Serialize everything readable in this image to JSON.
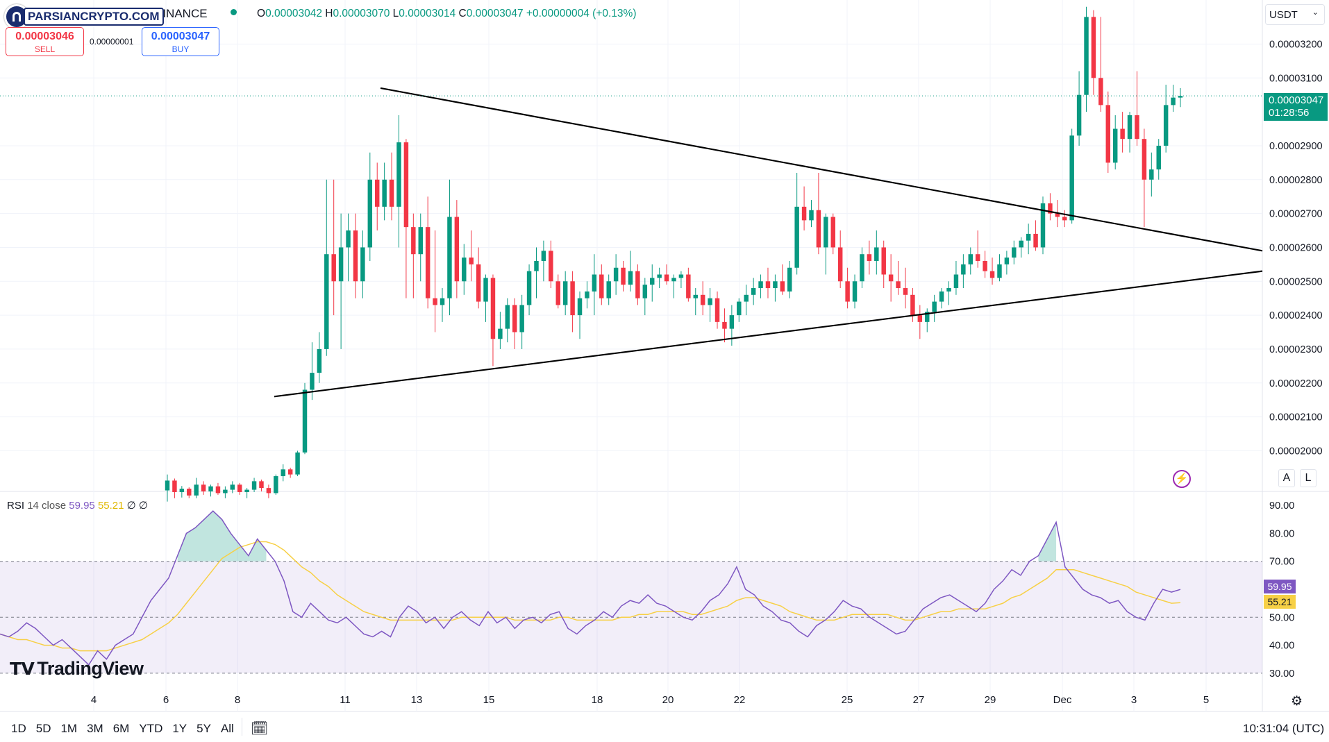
{
  "watermark": {
    "site": "PARSIANCRYPTO.COM",
    "exchange": "BINANCE",
    "brand": "TradingView"
  },
  "header": {
    "o_label": "O",
    "o_val": "0.00003042",
    "h_label": "H",
    "h_val": "0.00003070",
    "l_label": "L",
    "l_val": "0.00003014",
    "c_label": "C",
    "c_val": "0.00003047",
    "change": "+0.00000004 (+0.13%)"
  },
  "trade": {
    "sell_price": "0.00003046",
    "sell_label": "SELL",
    "spread": "0.00000001",
    "buy_price": "0.00003047",
    "buy_label": "BUY"
  },
  "currency": "USDT",
  "price_tag": {
    "price": "0.00003047",
    "countdown": "01:28:56"
  },
  "scale_buttons": {
    "auto": "A",
    "log": "L"
  },
  "rsi_header": {
    "name": "RSI",
    "params": "14 close",
    "rsi": "59.95",
    "ma": "55.21",
    "ext1": "∅",
    "ext2": "∅"
  },
  "rsi_tags": {
    "rsi": "59.95",
    "ma": "55.21"
  },
  "timeframes": [
    "1D",
    "5D",
    "1M",
    "3M",
    "6M",
    "YTD",
    "1Y",
    "5Y",
    "All"
  ],
  "clock": "10:31:04 (UTC)",
  "colors": {
    "up": "#089981",
    "down": "#f23645",
    "rsi": "#7e57c2",
    "rsi_ma": "#f7d046",
    "trend": "#000000"
  },
  "chart_data": {
    "type": "candlestick",
    "price_axis": {
      "ticks": [
        "0.00003200",
        "0.00003100",
        "0.00002900",
        "0.00002800",
        "0.00002700",
        "0.00002600",
        "0.00002500",
        "0.00002400",
        "0.00002300",
        "0.00002200",
        "0.00002100",
        "0.00002000"
      ],
      "range": [
        1.88e-05,
        3.33e-05
      ]
    },
    "time_axis": {
      "ticks": [
        "4",
        "6",
        "8",
        "11",
        "13",
        "15",
        "18",
        "20",
        "22",
        "25",
        "27",
        "29",
        "Dec",
        "3",
        "5"
      ]
    },
    "candles": [
      [
        1.883e-05,
        1.93e-05,
        1.85e-05,
        1.912e-05
      ],
      [
        1.912e-05,
        1.918e-05,
        1.86e-05,
        1.878e-05
      ],
      [
        1.878e-05,
        1.896e-05,
        1.862e-05,
        1.888e-05
      ],
      [
        1.888e-05,
        1.892e-05,
        1.86e-05,
        1.868e-05
      ],
      [
        1.868e-05,
        1.92e-05,
        1.86e-05,
        1.9e-05
      ],
      [
        1.9e-05,
        1.91e-05,
        1.87e-05,
        1.88e-05
      ],
      [
        1.88e-05,
        1.9e-05,
        1.865e-05,
        1.895e-05
      ],
      [
        1.895e-05,
        1.905e-05,
        1.87e-05,
        1.875e-05
      ],
      [
        1.875e-05,
        1.895e-05,
        1.86e-05,
        1.885e-05
      ],
      [
        1.885e-05,
        1.91e-05,
        1.875e-05,
        1.9e-05
      ],
      [
        1.9e-05,
        1.905e-05,
        1.87e-05,
        1.878e-05
      ],
      [
        1.878e-05,
        1.89e-05,
        1.86e-05,
        1.885e-05
      ],
      [
        1.885e-05,
        1.92e-05,
        1.878e-05,
        1.91e-05
      ],
      [
        1.91e-05,
        1.915e-05,
        1.88e-05,
        1.89e-05
      ],
      [
        1.89e-05,
        1.9e-05,
        1.86e-05,
        1.875e-05
      ],
      [
        1.875e-05,
        1.93e-05,
        1.87e-05,
        1.925e-05
      ],
      [
        1.925e-05,
        1.96e-05,
        1.91e-05,
        1.945e-05
      ],
      [
        1.945e-05,
        1.95e-05,
        1.92e-05,
        1.93e-05
      ],
      [
        1.93e-05,
        2e-05,
        1.925e-05,
        1.995e-05
      ],
      [
        1.995e-05,
        2.2e-05,
        1.99e-05,
        2.18e-05
      ],
      [
        2.18e-05,
        2.32e-05,
        2.15e-05,
        2.23e-05
      ],
      [
        2.23e-05,
        2.35e-05,
        2.2e-05,
        2.3e-05
      ],
      [
        2.3e-05,
        2.8e-05,
        2.28e-05,
        2.58e-05
      ],
      [
        2.58e-05,
        2.8e-05,
        2.4e-05,
        2.5e-05
      ],
      [
        2.5e-05,
        2.7e-05,
        2.3e-05,
        2.6e-05
      ],
      [
        2.6e-05,
        2.7e-05,
        2.5e-05,
        2.65e-05
      ],
      [
        2.65e-05,
        2.7e-05,
        2.45e-05,
        2.5e-05
      ],
      [
        2.5e-05,
        2.65e-05,
        2.45e-05,
        2.6e-05
      ],
      [
        2.6e-05,
        2.88e-05,
        2.56e-05,
        2.8e-05
      ],
      [
        2.8e-05,
        2.85e-05,
        2.65e-05,
        2.72e-05
      ],
      [
        2.72e-05,
        2.85e-05,
        2.68e-05,
        2.8e-05
      ],
      [
        2.8e-05,
        2.88e-05,
        2.68e-05,
        2.72e-05
      ],
      [
        2.72e-05,
        2.99e-05,
        2.6e-05,
        2.91e-05
      ],
      [
        2.91e-05,
        2.92e-05,
        2.45e-05,
        2.66e-05
      ],
      [
        2.66e-05,
        2.7e-05,
        2.45e-05,
        2.58e-05
      ],
      [
        2.58e-05,
        2.7e-05,
        2.5e-05,
        2.66e-05
      ],
      [
        2.66e-05,
        2.75e-05,
        2.42e-05,
        2.45e-05
      ],
      [
        2.45e-05,
        2.65e-05,
        2.35e-05,
        2.43e-05
      ],
      [
        2.43e-05,
        2.48e-05,
        2.38e-05,
        2.45e-05
      ],
      [
        2.45e-05,
        2.8e-05,
        2.4e-05,
        2.69e-05
      ],
      [
        2.69e-05,
        2.74e-05,
        2.45e-05,
        2.5e-05
      ],
      [
        2.5e-05,
        2.61e-05,
        2.46e-05,
        2.57e-05
      ],
      [
        2.57e-05,
        2.65e-05,
        2.5e-05,
        2.55e-05
      ],
      [
        2.55e-05,
        2.6e-05,
        2.42e-05,
        2.44e-05
      ],
      [
        2.44e-05,
        2.52e-05,
        2.38e-05,
        2.51e-05
      ],
      [
        2.51e-05,
        2.52e-05,
        2.25e-05,
        2.33e-05
      ],
      [
        2.33e-05,
        2.41e-05,
        2.3e-05,
        2.36e-05
      ],
      [
        2.36e-05,
        2.45e-05,
        2.32e-05,
        2.43e-05
      ],
      [
        2.43e-05,
        2.45e-05,
        2.3e-05,
        2.35e-05
      ],
      [
        2.35e-05,
        2.46e-05,
        2.3e-05,
        2.43e-05
      ],
      [
        2.43e-05,
        2.55e-05,
        2.4e-05,
        2.53e-05
      ],
      [
        2.53e-05,
        2.6e-05,
        2.45e-05,
        2.56e-05
      ],
      [
        2.56e-05,
        2.62e-05,
        2.5e-05,
        2.59e-05
      ],
      [
        2.59e-05,
        2.62e-05,
        2.48e-05,
        2.5e-05
      ],
      [
        2.5e-05,
        2.52e-05,
        2.42e-05,
        2.43e-05
      ],
      [
        2.43e-05,
        2.53e-05,
        2.4e-05,
        2.5e-05
      ],
      [
        2.5e-05,
        2.53e-05,
        2.35e-05,
        2.4e-05
      ],
      [
        2.4e-05,
        2.47e-05,
        2.33e-05,
        2.45e-05
      ],
      [
        2.45e-05,
        2.5e-05,
        2.42e-05,
        2.47e-05
      ],
      [
        2.47e-05,
        2.58e-05,
        2.4e-05,
        2.52e-05
      ],
      [
        2.52e-05,
        2.55e-05,
        2.43e-05,
        2.45e-05
      ],
      [
        2.45e-05,
        2.52e-05,
        2.43e-05,
        2.5e-05
      ],
      [
        2.5e-05,
        2.58e-05,
        2.46e-05,
        2.54e-05
      ],
      [
        2.54e-05,
        2.56e-05,
        2.47e-05,
        2.49e-05
      ],
      [
        2.49e-05,
        2.59e-05,
        2.47e-05,
        2.53e-05
      ],
      [
        2.53e-05,
        2.55e-05,
        2.43e-05,
        2.45e-05
      ],
      [
        2.45e-05,
        2.51e-05,
        2.4e-05,
        2.49e-05
      ],
      [
        2.49e-05,
        2.55e-05,
        2.44e-05,
        2.51e-05
      ],
      [
        2.51e-05,
        2.54e-05,
        2.48e-05,
        2.52e-05
      ],
      [
        2.52e-05,
        2.55e-05,
        2.49e-05,
        2.5e-05
      ],
      [
        2.5e-05,
        2.52e-05,
        2.45e-05,
        2.51e-05
      ],
      [
        2.51e-05,
        2.53e-05,
        2.48e-05,
        2.52e-05
      ],
      [
        2.52e-05,
        2.54e-05,
        2.44e-05,
        2.45e-05
      ],
      [
        2.45e-05,
        2.48e-05,
        2.4e-05,
        2.46e-05
      ],
      [
        2.46e-05,
        2.5e-05,
        2.4e-05,
        2.43e-05
      ],
      [
        2.43e-05,
        2.48e-05,
        2.38e-05,
        2.45e-05
      ],
      [
        2.45e-05,
        2.47e-05,
        2.36e-05,
        2.38e-05
      ],
      [
        2.38e-05,
        2.42e-05,
        2.32e-05,
        2.36e-05
      ],
      [
        2.36e-05,
        2.43e-05,
        2.31e-05,
        2.4e-05
      ],
      [
        2.4e-05,
        2.45e-05,
        2.38e-05,
        2.44e-05
      ],
      [
        2.44e-05,
        2.49e-05,
        2.4e-05,
        2.46e-05
      ],
      [
        2.46e-05,
        2.51e-05,
        2.43e-05,
        2.48e-05
      ],
      [
        2.48e-05,
        2.52e-05,
        2.45e-05,
        2.5e-05
      ],
      [
        2.5e-05,
        2.54e-05,
        2.45e-05,
        2.48e-05
      ],
      [
        2.48e-05,
        2.52e-05,
        2.44e-05,
        2.5e-05
      ],
      [
        2.5e-05,
        2.55e-05,
        2.46e-05,
        2.47e-05
      ],
      [
        2.47e-05,
        2.56e-05,
        2.45e-05,
        2.54e-05
      ],
      [
        2.54e-05,
        2.82e-05,
        2.52e-05,
        2.72e-05
      ],
      [
        2.72e-05,
        2.78e-05,
        2.65e-05,
        2.68e-05
      ],
      [
        2.68e-05,
        2.74e-05,
        2.66e-05,
        2.71e-05
      ],
      [
        2.71e-05,
        2.82e-05,
        2.58e-05,
        2.6e-05
      ],
      [
        2.6e-05,
        2.7e-05,
        2.52e-05,
        2.69e-05
      ],
      [
        2.69e-05,
        2.7e-05,
        2.58e-05,
        2.6e-05
      ],
      [
        2.6e-05,
        2.65e-05,
        2.48e-05,
        2.5e-05
      ],
      [
        2.5e-05,
        2.54e-05,
        2.42e-05,
        2.44e-05
      ],
      [
        2.44e-05,
        2.52e-05,
        2.42e-05,
        2.5e-05
      ],
      [
        2.5e-05,
        2.6e-05,
        2.48e-05,
        2.58e-05
      ],
      [
        2.58e-05,
        2.62e-05,
        2.52e-05,
        2.56e-05
      ],
      [
        2.56e-05,
        2.65e-05,
        2.52e-05,
        2.6e-05
      ],
      [
        2.6e-05,
        2.62e-05,
        2.48e-05,
        2.52e-05
      ],
      [
        2.52e-05,
        2.58e-05,
        2.44e-05,
        2.5e-05
      ],
      [
        2.5e-05,
        2.56e-05,
        2.46e-05,
        2.48e-05
      ],
      [
        2.48e-05,
        2.54e-05,
        2.42e-05,
        2.46e-05
      ],
      [
        2.46e-05,
        2.48e-05,
        2.38e-05,
        2.4e-05
      ],
      [
        2.4e-05,
        2.43e-05,
        2.33e-05,
        2.38e-05
      ],
      [
        2.38e-05,
        2.42e-05,
        2.35e-05,
        2.41e-05
      ],
      [
        2.41e-05,
        2.46e-05,
        2.38e-05,
        2.44e-05
      ],
      [
        2.44e-05,
        2.48e-05,
        2.42e-05,
        2.47e-05
      ],
      [
        2.47e-05,
        2.5e-05,
        2.43e-05,
        2.48e-05
      ],
      [
        2.48e-05,
        2.56e-05,
        2.46e-05,
        2.52e-05
      ],
      [
        2.52e-05,
        2.58e-05,
        2.48e-05,
        2.55e-05
      ],
      [
        2.55e-05,
        2.6e-05,
        2.52e-05,
        2.58e-05
      ],
      [
        2.58e-05,
        2.65e-05,
        2.54e-05,
        2.56e-05
      ],
      [
        2.56e-05,
        2.59e-05,
        2.51e-05,
        2.53e-05
      ],
      [
        2.53e-05,
        2.57e-05,
        2.49e-05,
        2.51e-05
      ],
      [
        2.51e-05,
        2.58e-05,
        2.5e-05,
        2.55e-05
      ],
      [
        2.55e-05,
        2.59e-05,
        2.52e-05,
        2.57e-05
      ],
      [
        2.57e-05,
        2.62e-05,
        2.55e-05,
        2.6e-05
      ],
      [
        2.6e-05,
        2.63e-05,
        2.57e-05,
        2.62e-05
      ],
      [
        2.62e-05,
        2.67e-05,
        2.58e-05,
        2.64e-05
      ],
      [
        2.64e-05,
        2.68e-05,
        2.59e-05,
        2.6e-05
      ],
      [
        2.6e-05,
        2.75e-05,
        2.58e-05,
        2.73e-05
      ],
      [
        2.73e-05,
        2.76e-05,
        2.68e-05,
        2.7e-05
      ],
      [
        2.7e-05,
        2.74e-05,
        2.66e-05,
        2.69e-05
      ],
      [
        2.69e-05,
        2.71e-05,
        2.66e-05,
        2.68e-05
      ],
      [
        2.68e-05,
        2.95e-05,
        2.67e-05,
        2.93e-05
      ],
      [
        2.93e-05,
        3.12e-05,
        2.9e-05,
        3.05e-05
      ],
      [
        3.05e-05,
        3.31e-05,
        3e-05,
        3.28e-05
      ],
      [
        3.28e-05,
        3.3e-05,
        3.05e-05,
        3.1e-05
      ],
      [
        3.1e-05,
        3.28e-05,
        3e-05,
        3.02e-05
      ],
      [
        3.02e-05,
        3.06e-05,
        2.82e-05,
        2.85e-05
      ],
      [
        2.85e-05,
        2.99e-05,
        2.83e-05,
        2.95e-05
      ],
      [
        2.95e-05,
        3e-05,
        2.88e-05,
        2.92e-05
      ],
      [
        2.92e-05,
        3e-05,
        2.88e-05,
        2.99e-05
      ],
      [
        2.99e-05,
        3.12e-05,
        2.9e-05,
        2.92e-05
      ],
      [
        2.92e-05,
        2.95e-05,
        2.66e-05,
        2.8e-05
      ],
      [
        2.8e-05,
        2.88e-05,
        2.75e-05,
        2.83e-05
      ],
      [
        2.83e-05,
        2.92e-05,
        2.8e-05,
        2.9e-05
      ],
      [
        2.9e-05,
        3.08e-05,
        2.88e-05,
        3.02e-05
      ],
      [
        3.02e-05,
        3.08e-05,
        3e-05,
        3.042e-05
      ],
      [
        3.042e-05,
        3.07e-05,
        3.014e-05,
        3.047e-05
      ]
    ],
    "trendlines": [
      {
        "from": [
          0.0,
          3.07e-05
        ],
        "to": [
          1.0,
          2.59e-05
        ]
      },
      {
        "from": [
          0.0,
          2.16e-05
        ],
        "to": [
          1.0,
          2.53e-05
        ]
      }
    ],
    "rsi": {
      "axis_ticks": [
        "90.00",
        "80.00",
        "70.00",
        "50.00",
        "40.00",
        "30.00"
      ],
      "range": [
        25,
        95
      ],
      "bands": {
        "upper": 70,
        "middle": 50,
        "lower": 30
      },
      "values": [
        44,
        43,
        45,
        48,
        46,
        43,
        40,
        42,
        39,
        36,
        33,
        38,
        35,
        40,
        42,
        44,
        50,
        56,
        60,
        64,
        72,
        80,
        82,
        85,
        88,
        85,
        80,
        76,
        72,
        78,
        74,
        70,
        63,
        52,
        50,
        55,
        52,
        49,
        48,
        50,
        47,
        44,
        43,
        45,
        43,
        50,
        54,
        52,
        48,
        50,
        46,
        50,
        52,
        49,
        47,
        52,
        48,
        50,
        46,
        49,
        50,
        48,
        51,
        52,
        46,
        44,
        47,
        49,
        52,
        50,
        54,
        56,
        55,
        58,
        55,
        54,
        52,
        50,
        49,
        52,
        56,
        58,
        62,
        68,
        60,
        58,
        54,
        52,
        49,
        48,
        45,
        43,
        47,
        49,
        52,
        56,
        54,
        53,
        50,
        48,
        46,
        44,
        45,
        49,
        53,
        55,
        57,
        58,
        56,
        54,
        52,
        55,
        60,
        63,
        67,
        65,
        70,
        72,
        78,
        84,
        68,
        64,
        60,
        58,
        57,
        55,
        56,
        52,
        50,
        49,
        55,
        60,
        59,
        59.95
      ],
      "ma_values": [
        44,
        43,
        42,
        42,
        41,
        40,
        40,
        39,
        39,
        38,
        38,
        38,
        38,
        39,
        40,
        41,
        42,
        44,
        46,
        48,
        51,
        55,
        59,
        63,
        67,
        71,
        73,
        75,
        76,
        77,
        77,
        76,
        74,
        71,
        68,
        66,
        63,
        61,
        58,
        56,
        54,
        52,
        51,
        50,
        49,
        49,
        49,
        49,
        49,
        49,
        49,
        49,
        50,
        50,
        50,
        50,
        50,
        50,
        49,
        49,
        49,
        49,
        49,
        50,
        50,
        49,
        49,
        49,
        49,
        49,
        50,
        50,
        51,
        51,
        52,
        52,
        52,
        52,
        51,
        51,
        52,
        53,
        54,
        56,
        57,
        57,
        56,
        55,
        54,
        52,
        51,
        50,
        49,
        49,
        49,
        50,
        51,
        51,
        51,
        51,
        51,
        50,
        49,
        49,
        50,
        51,
        52,
        52,
        53,
        53,
        53,
        53,
        54,
        55,
        57,
        58,
        60,
        62,
        64,
        67,
        67,
        67,
        66,
        65,
        64,
        63,
        62,
        61,
        59,
        58,
        57,
        56,
        55,
        55.21
      ]
    }
  }
}
